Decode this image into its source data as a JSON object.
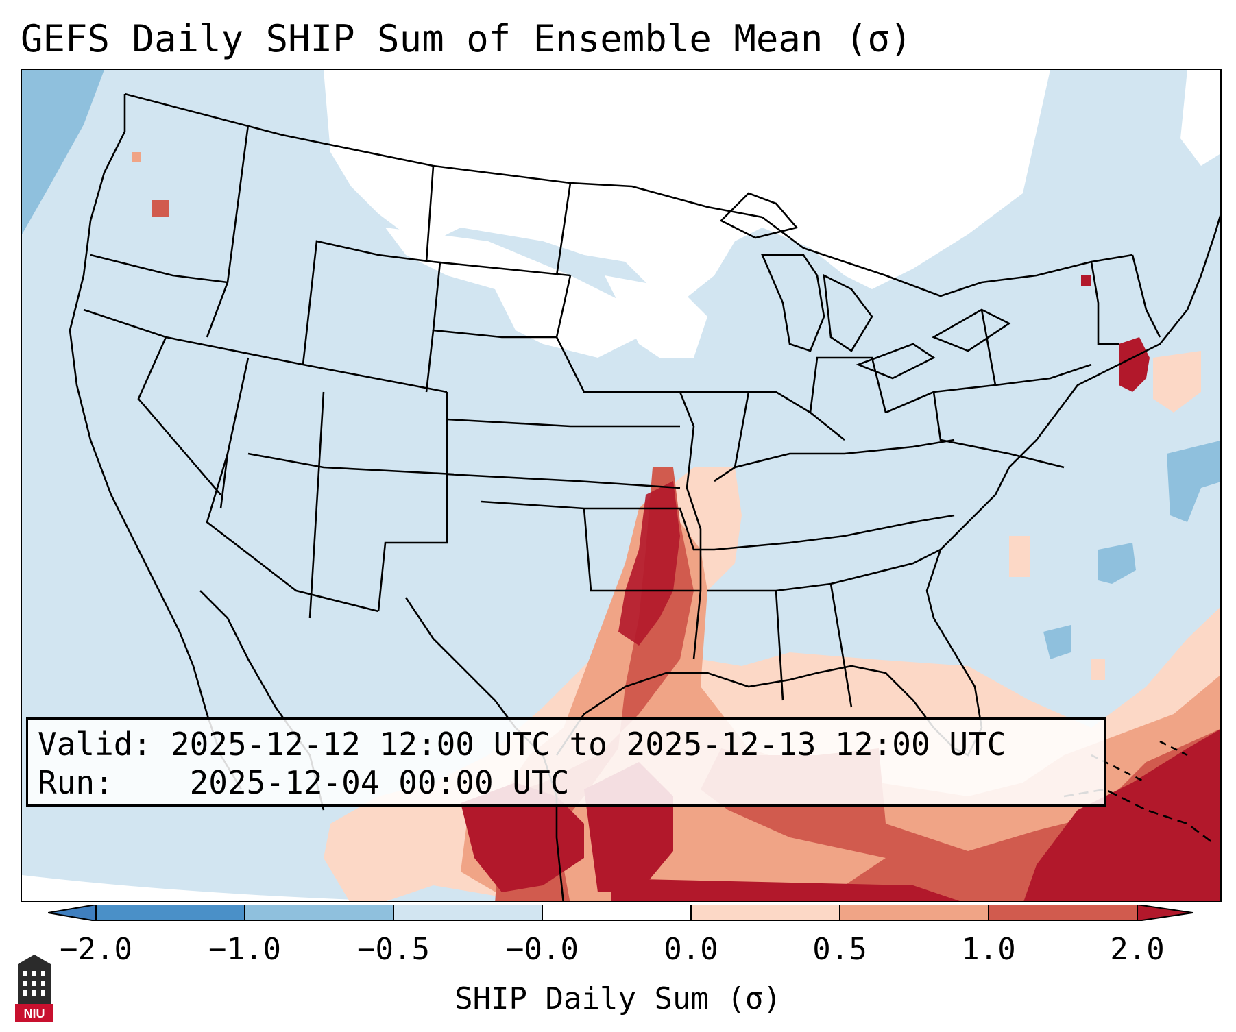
{
  "title": "GEFS Daily SHIP Sum of Ensemble Mean (σ)",
  "valid_label": "Valid:",
  "valid_value": "2025-12-12 12:00 UTC to 2025-12-13 12:00 UTC",
  "run_label": "Run:",
  "run_value": "2025-12-04 00:00 UTC",
  "colorbar": {
    "label": "SHIP Daily Sum (σ)",
    "ticks": [
      "−2.0",
      "−1.0",
      "−0.5",
      "−0.0",
      "0.0",
      "0.5",
      "1.0",
      "2.0"
    ],
    "bins": [
      {
        "range": "<-2.0",
        "color": "#3f7fbf"
      },
      {
        "range": "-2.0 to -1.0",
        "color": "#4a90c8"
      },
      {
        "range": "-1.0 to -0.5",
        "color": "#8fc0dd"
      },
      {
        "range": "-0.5 to -0.0",
        "color": "#d2e5f1"
      },
      {
        "range": "-0.0 to 0.0",
        "color": "#ffffff"
      },
      {
        "range": "0.0 to 0.5",
        "color": "#fcd8c6"
      },
      {
        "range": "0.5 to 1.0",
        "color": "#f0a486"
      },
      {
        "range": "1.0 to 2.0",
        "color": "#d15b4e"
      },
      {
        "range": ">2.0",
        "color": "#b2182b"
      }
    ]
  },
  "logo_text": "NIU"
}
